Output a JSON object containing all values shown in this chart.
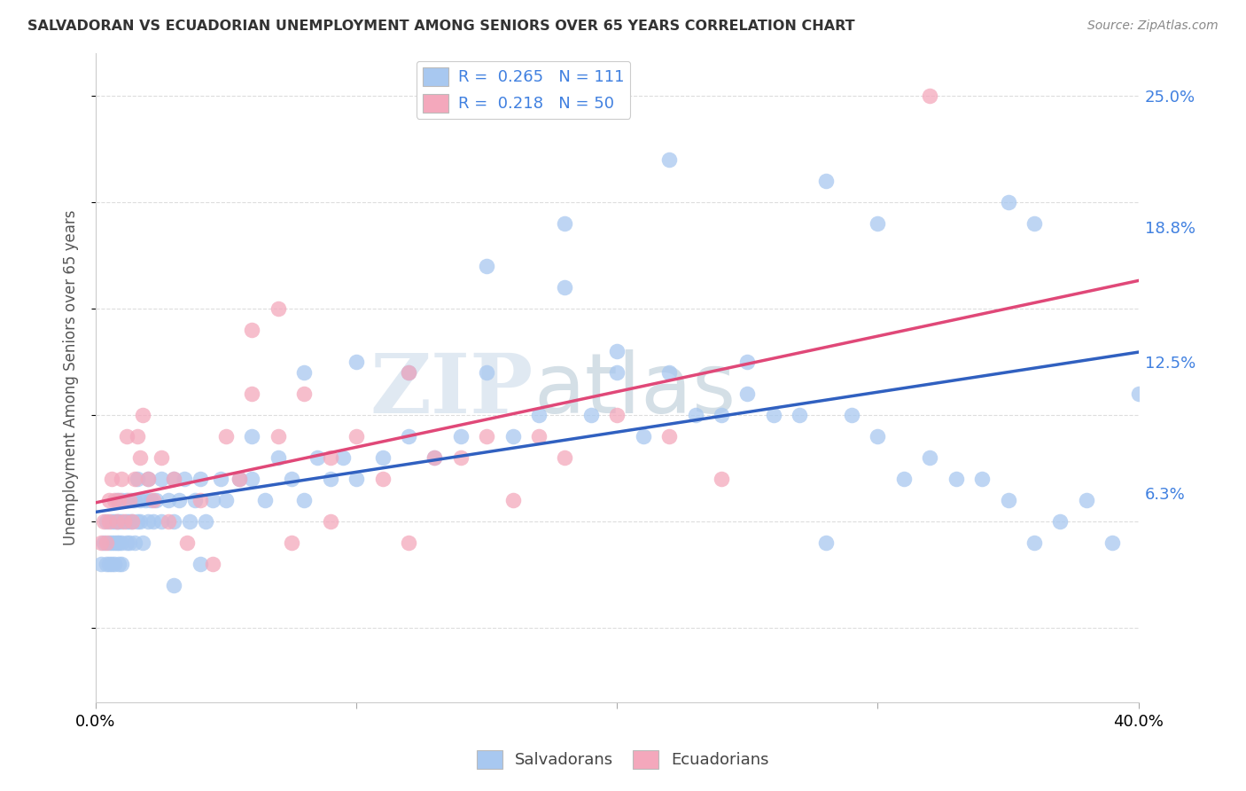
{
  "title": "SALVADORAN VS ECUADORIAN UNEMPLOYMENT AMONG SENIORS OVER 65 YEARS CORRELATION CHART",
  "source": "Source: ZipAtlas.com",
  "ylabel": "Unemployment Among Seniors over 65 years",
  "legend_label1": "Salvadorans",
  "legend_label2": "Ecuadorians",
  "R1": 0.265,
  "N1": 111,
  "R2": 0.218,
  "N2": 50,
  "color_blue": "#A8C8F0",
  "color_pink": "#F4A8BC",
  "line_color_blue": "#3060C0",
  "line_color_pink": "#E04878",
  "legend_text_color": "#4080E0",
  "xlim": [
    0.0,
    0.4
  ],
  "ylim": [
    -0.035,
    0.27
  ],
  "yticks": [
    0.063,
    0.125,
    0.188,
    0.25
  ],
  "ytick_labels": [
    "6.3%",
    "12.5%",
    "18.8%",
    "25.0%"
  ],
  "watermark_zip": "ZIP",
  "watermark_atlas": "atlas",
  "blue_x": [
    0.002,
    0.003,
    0.004,
    0.004,
    0.005,
    0.005,
    0.006,
    0.006,
    0.006,
    0.007,
    0.007,
    0.007,
    0.008,
    0.008,
    0.008,
    0.009,
    0.009,
    0.009,
    0.01,
    0.01,
    0.01,
    0.01,
    0.012,
    0.012,
    0.012,
    0.013,
    0.013,
    0.014,
    0.014,
    0.015,
    0.015,
    0.016,
    0.016,
    0.017,
    0.017,
    0.018,
    0.019,
    0.02,
    0.02,
    0.021,
    0.022,
    0.023,
    0.025,
    0.025,
    0.028,
    0.03,
    0.03,
    0.032,
    0.034,
    0.036,
    0.038,
    0.04,
    0.042,
    0.045,
    0.048,
    0.05,
    0.055,
    0.06,
    0.065,
    0.07,
    0.075,
    0.08,
    0.085,
    0.09,
    0.095,
    0.1,
    0.11,
    0.12,
    0.13,
    0.14,
    0.15,
    0.16,
    0.17,
    0.18,
    0.19,
    0.2,
    0.21,
    0.22,
    0.23,
    0.24,
    0.25,
    0.26,
    0.27,
    0.28,
    0.29,
    0.3,
    0.31,
    0.32,
    0.33,
    0.34,
    0.35,
    0.36,
    0.37,
    0.38,
    0.39,
    0.4,
    0.22,
    0.28,
    0.18,
    0.35,
    0.3,
    0.36,
    0.15,
    0.2,
    0.25,
    0.1,
    0.12,
    0.08,
    0.06,
    0.04,
    0.03
  ],
  "blue_y": [
    0.03,
    0.04,
    0.03,
    0.05,
    0.04,
    0.03,
    0.04,
    0.05,
    0.03,
    0.04,
    0.05,
    0.03,
    0.04,
    0.05,
    0.06,
    0.04,
    0.05,
    0.03,
    0.04,
    0.05,
    0.06,
    0.03,
    0.05,
    0.04,
    0.06,
    0.05,
    0.04,
    0.06,
    0.05,
    0.04,
    0.06,
    0.05,
    0.07,
    0.05,
    0.06,
    0.04,
    0.06,
    0.05,
    0.07,
    0.06,
    0.05,
    0.06,
    0.05,
    0.07,
    0.06,
    0.05,
    0.07,
    0.06,
    0.07,
    0.05,
    0.06,
    0.07,
    0.05,
    0.06,
    0.07,
    0.06,
    0.07,
    0.07,
    0.06,
    0.08,
    0.07,
    0.06,
    0.08,
    0.07,
    0.08,
    0.07,
    0.08,
    0.09,
    0.08,
    0.09,
    0.17,
    0.09,
    0.1,
    0.16,
    0.1,
    0.12,
    0.09,
    0.12,
    0.1,
    0.1,
    0.11,
    0.1,
    0.1,
    0.04,
    0.1,
    0.09,
    0.07,
    0.08,
    0.07,
    0.07,
    0.06,
    0.04,
    0.05,
    0.06,
    0.04,
    0.11,
    0.22,
    0.21,
    0.19,
    0.2,
    0.19,
    0.19,
    0.12,
    0.13,
    0.125,
    0.125,
    0.12,
    0.12,
    0.09,
    0.03,
    0.02
  ],
  "pink_x": [
    0.002,
    0.003,
    0.004,
    0.005,
    0.005,
    0.006,
    0.007,
    0.008,
    0.009,
    0.01,
    0.011,
    0.012,
    0.013,
    0.014,
    0.015,
    0.016,
    0.017,
    0.018,
    0.02,
    0.022,
    0.025,
    0.028,
    0.03,
    0.035,
    0.04,
    0.045,
    0.05,
    0.055,
    0.06,
    0.07,
    0.075,
    0.08,
    0.09,
    0.1,
    0.11,
    0.12,
    0.13,
    0.14,
    0.15,
    0.16,
    0.17,
    0.18,
    0.2,
    0.22,
    0.24,
    0.06,
    0.09,
    0.12,
    0.07,
    0.32
  ],
  "pink_y": [
    0.04,
    0.05,
    0.04,
    0.06,
    0.05,
    0.07,
    0.06,
    0.05,
    0.06,
    0.07,
    0.05,
    0.09,
    0.06,
    0.05,
    0.07,
    0.09,
    0.08,
    0.1,
    0.07,
    0.06,
    0.08,
    0.05,
    0.07,
    0.04,
    0.06,
    0.03,
    0.09,
    0.07,
    0.11,
    0.09,
    0.04,
    0.11,
    0.08,
    0.09,
    0.07,
    0.12,
    0.08,
    0.08,
    0.09,
    0.06,
    0.09,
    0.08,
    0.1,
    0.09,
    0.07,
    0.14,
    0.05,
    0.04,
    0.15,
    0.25
  ]
}
